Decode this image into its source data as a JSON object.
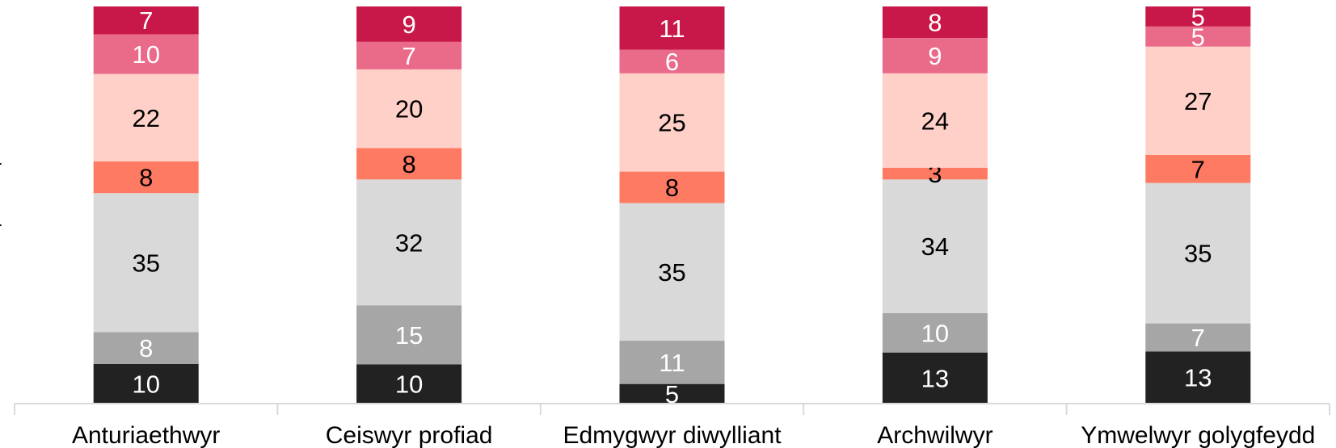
{
  "chart_data": {
    "type": "bar",
    "stacked": true,
    "categories": [
      "Anturiaethwyr",
      "Ceiswyr profiad",
      "Edmygwyr diwylliant",
      "Archwilwyr",
      "Ymwelwyr golygfeydd"
    ],
    "series": [
      {
        "color": "#222222",
        "label_color": "#ffffff",
        "values": [
          10,
          10,
          5,
          13,
          13
        ]
      },
      {
        "color": "#a6a6a6",
        "label_color": "#ffffff",
        "values": [
          8,
          15,
          11,
          10,
          7
        ]
      },
      {
        "color": "#d9d9d9",
        "label_color": "#000000",
        "values": [
          35,
          32,
          35,
          34,
          35
        ]
      },
      {
        "color": "#ff7a62",
        "label_color": "#000000",
        "values": [
          8,
          8,
          8,
          3,
          7
        ]
      },
      {
        "color": "#ffd0c8",
        "label_color": "#000000",
        "values": [
          22,
          20,
          25,
          24,
          27
        ]
      },
      {
        "color": "#ea6a89",
        "label_color": "#ffffff",
        "values": [
          10,
          7,
          6,
          9,
          5
        ]
      },
      {
        "color": "#c8184a",
        "label_color": "#ffffff",
        "values": [
          7,
          9,
          11,
          8,
          5
        ]
      }
    ],
    "ylim": [
      0,
      100
    ],
    "grid": false,
    "legend": "cropped-left",
    "legend_fragments": [
      "r",
      "r"
    ]
  }
}
